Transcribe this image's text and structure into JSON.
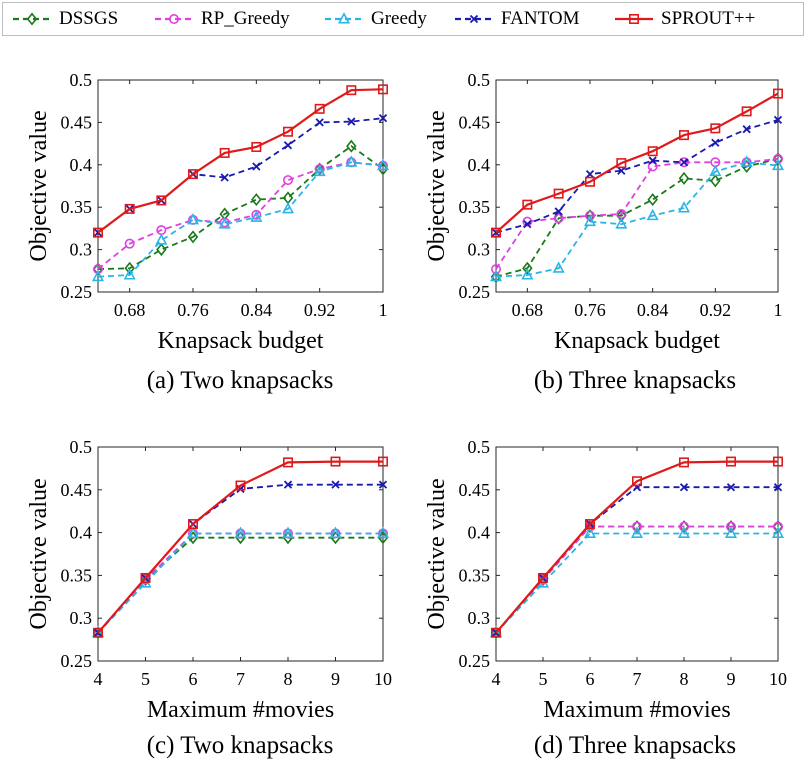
{
  "legend": [
    {
      "name": "DSSGS",
      "color": "#1a7a1a",
      "marker": "diamond",
      "dash": "6,4"
    },
    {
      "name": "RP_Greedy",
      "color": "#e040e0",
      "marker": "circle",
      "dash": "6,4"
    },
    {
      "name": "Greedy",
      "color": "#29b6e6",
      "marker": "triangle",
      "dash": "6,4"
    },
    {
      "name": "FANTOM",
      "color": "#1a1ab0",
      "marker": "x",
      "dash": "6,4"
    },
    {
      "name": "SPROUT++",
      "color": "#e01a1a",
      "marker": "square",
      "dash": ""
    }
  ],
  "chart_data": [
    {
      "type": "line",
      "caption": "(a) Two knapsacks",
      "xlabel": "Knapsack budget",
      "ylabel": "Objective value",
      "xlim": [
        0.64,
        1.0
      ],
      "ylim": [
        0.25,
        0.5
      ],
      "xticks": [
        0.68,
        0.76,
        0.84,
        0.92,
        1.0
      ],
      "xtick_labels": [
        "0.68",
        "0.76",
        "0.84",
        "0.92",
        "1"
      ],
      "yticks": [
        0.25,
        0.3,
        0.35,
        0.4,
        0.45,
        0.5
      ],
      "ytick_labels": [
        "0.25",
        "0.3",
        "0.35",
        "0.4",
        "0.45",
        "0.5"
      ],
      "x": [
        0.64,
        0.68,
        0.72,
        0.76,
        0.8,
        0.84,
        0.88,
        0.92,
        0.96,
        1.0
      ],
      "series": [
        {
          "name": "DSSGS",
          "values": [
            0.277,
            0.278,
            0.3,
            0.315,
            0.342,
            0.359,
            0.361,
            0.395,
            0.422,
            0.395
          ]
        },
        {
          "name": "RP_Greedy",
          "values": [
            0.277,
            0.307,
            0.323,
            0.335,
            0.332,
            0.341,
            0.382,
            0.395,
            0.403,
            0.399
          ]
        },
        {
          "name": "Greedy",
          "values": [
            0.268,
            0.27,
            0.311,
            0.335,
            0.33,
            0.338,
            0.348,
            0.392,
            0.403,
            0.399
          ]
        },
        {
          "name": "FANTOM",
          "values": [
            0.32,
            0.348,
            0.358,
            0.389,
            0.385,
            0.398,
            0.423,
            0.45,
            0.451,
            0.455
          ]
        },
        {
          "name": "SPROUT++",
          "values": [
            0.32,
            0.348,
            0.358,
            0.389,
            0.414,
            0.421,
            0.439,
            0.466,
            0.488,
            0.489
          ]
        }
      ]
    },
    {
      "type": "line",
      "caption": "(b) Three knapsacks",
      "xlabel": "Knapsack budget",
      "ylabel": "Objective value",
      "xlim": [
        0.64,
        1.0
      ],
      "ylim": [
        0.25,
        0.5
      ],
      "xticks": [
        0.68,
        0.76,
        0.84,
        0.92,
        1.0
      ],
      "xtick_labels": [
        "0.68",
        "0.76",
        "0.84",
        "0.92",
        "1"
      ],
      "yticks": [
        0.25,
        0.3,
        0.35,
        0.4,
        0.45,
        0.5
      ],
      "ytick_labels": [
        "0.25",
        "0.3",
        "0.35",
        "0.4",
        "0.45",
        "0.5"
      ],
      "x": [
        0.64,
        0.68,
        0.72,
        0.76,
        0.8,
        0.84,
        0.88,
        0.92,
        0.96,
        1.0
      ],
      "series": [
        {
          "name": "DSSGS",
          "values": [
            0.268,
            0.278,
            0.337,
            0.34,
            0.34,
            0.359,
            0.384,
            0.381,
            0.398,
            0.407
          ]
        },
        {
          "name": "RP_Greedy",
          "values": [
            0.277,
            0.333,
            0.337,
            0.34,
            0.342,
            0.398,
            0.403,
            0.403,
            0.403,
            0.407
          ]
        },
        {
          "name": "Greedy",
          "values": [
            0.268,
            0.27,
            0.278,
            0.333,
            0.33,
            0.34,
            0.349,
            0.392,
            0.403,
            0.399
          ]
        },
        {
          "name": "FANTOM",
          "values": [
            0.32,
            0.33,
            0.345,
            0.389,
            0.393,
            0.405,
            0.403,
            0.426,
            0.442,
            0.453
          ]
        },
        {
          "name": "SPROUT++",
          "values": [
            0.32,
            0.353,
            0.366,
            0.38,
            0.402,
            0.416,
            0.435,
            0.443,
            0.463,
            0.484
          ]
        }
      ]
    },
    {
      "type": "line",
      "caption": "(c) Two knapsacks",
      "xlabel": "Maximum #movies",
      "ylabel": "Objective value",
      "xlim": [
        4,
        10
      ],
      "ylim": [
        0.25,
        0.5
      ],
      "xticks": [
        4,
        5,
        6,
        7,
        8,
        9,
        10
      ],
      "xtick_labels": [
        "4",
        "5",
        "6",
        "7",
        "8",
        "9",
        "10"
      ],
      "yticks": [
        0.25,
        0.3,
        0.35,
        0.4,
        0.45,
        0.5
      ],
      "ytick_labels": [
        "0.25",
        "0.3",
        "0.35",
        "0.4",
        "0.45",
        "0.5"
      ],
      "x": [
        4,
        5,
        6,
        7,
        8,
        9,
        10
      ],
      "series": [
        {
          "name": "DSSGS",
          "values": [
            0.283,
            0.345,
            0.394,
            0.394,
            0.394,
            0.394,
            0.394
          ]
        },
        {
          "name": "RP_Greedy",
          "values": [
            0.283,
            0.345,
            0.399,
            0.399,
            0.399,
            0.399,
            0.399
          ]
        },
        {
          "name": "Greedy",
          "values": [
            0.283,
            0.341,
            0.399,
            0.399,
            0.399,
            0.399,
            0.399
          ]
        },
        {
          "name": "FANTOM",
          "values": [
            0.283,
            0.347,
            0.41,
            0.451,
            0.456,
            0.456,
            0.456
          ]
        },
        {
          "name": "SPROUT++",
          "values": [
            0.283,
            0.347,
            0.41,
            0.455,
            0.482,
            0.483,
            0.483
          ]
        }
      ]
    },
    {
      "type": "line",
      "caption": "(d) Three knapsacks",
      "xlabel": "Maximum #movies",
      "ylabel": "Objective value",
      "xlim": [
        4,
        10
      ],
      "ylim": [
        0.25,
        0.5
      ],
      "xticks": [
        4,
        5,
        6,
        7,
        8,
        9,
        10
      ],
      "xtick_labels": [
        "4",
        "5",
        "6",
        "7",
        "8",
        "9",
        "10"
      ],
      "yticks": [
        0.25,
        0.3,
        0.35,
        0.4,
        0.45,
        0.5
      ],
      "ytick_labels": [
        "0.25",
        "0.3",
        "0.35",
        "0.4",
        "0.45",
        "0.5"
      ],
      "x": [
        4,
        5,
        6,
        7,
        8,
        9,
        10
      ],
      "series": [
        {
          "name": "DSSGS",
          "values": [
            0.283,
            0.345,
            0.407,
            0.407,
            0.407,
            0.407,
            0.407
          ]
        },
        {
          "name": "RP_Greedy",
          "values": [
            0.283,
            0.345,
            0.407,
            0.407,
            0.407,
            0.407,
            0.407
          ]
        },
        {
          "name": "Greedy",
          "values": [
            0.283,
            0.341,
            0.399,
            0.399,
            0.399,
            0.399,
            0.399
          ]
        },
        {
          "name": "FANTOM",
          "values": [
            0.283,
            0.347,
            0.41,
            0.453,
            0.453,
            0.453,
            0.453
          ]
        },
        {
          "name": "SPROUT++",
          "values": [
            0.283,
            0.347,
            0.41,
            0.46,
            0.482,
            0.483,
            0.483
          ]
        }
      ]
    }
  ]
}
